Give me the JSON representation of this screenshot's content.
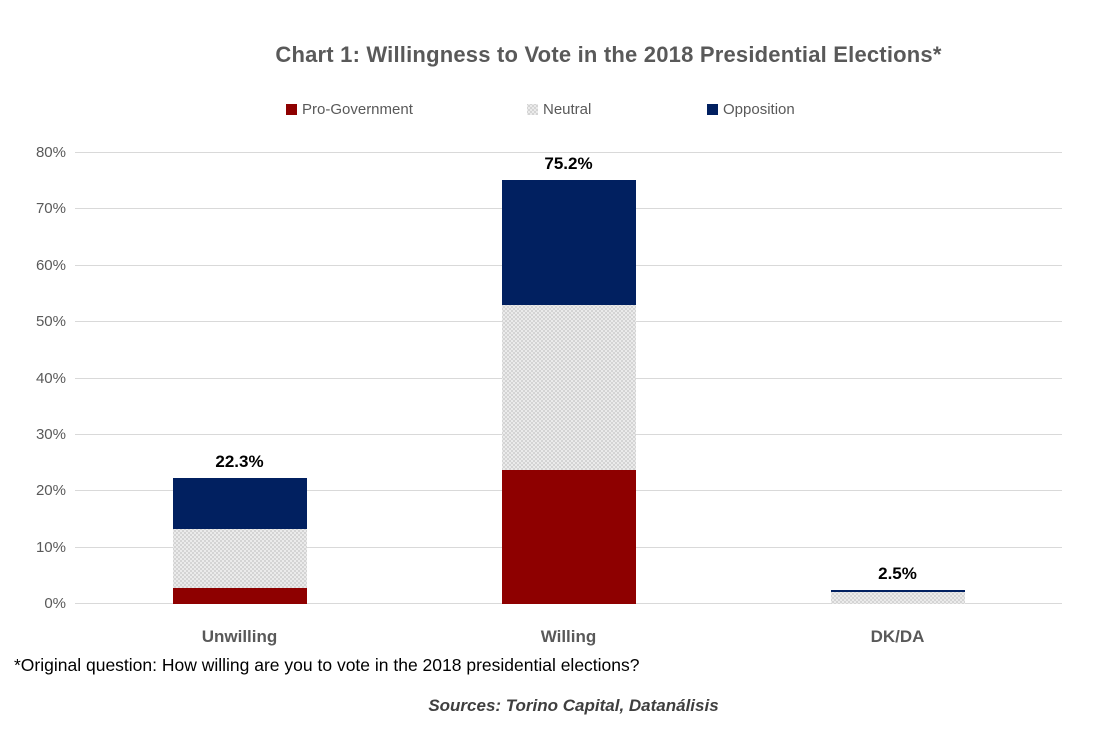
{
  "title": "Chart 1: Willingness to Vote in the 2018 Presidential Elections*",
  "footnote": "*Original question: How willing are you to vote in the 2018 presidential elections?",
  "source": "Sources: Torino Capital, Datanálisis",
  "colors": {
    "pro_government": "#8E0000",
    "neutral": "#EBEBEB",
    "neutral_dots": "#CDCDCD",
    "opposition": "#012060",
    "gridline": "#D9D9D9",
    "axis_text": "#595959",
    "title_text": "#595959",
    "data_label_text": "#000000"
  },
  "chart_data": {
    "type": "bar",
    "stacked": true,
    "title": "Chart 1: Willingness to Vote in the 2018 Presidential Elections*",
    "categories": [
      "Unwilling",
      "Willing",
      "DK/DA"
    ],
    "series": [
      {
        "name": "Pro-Government",
        "color_key": "pro_government",
        "values": [
          2.8,
          23.8,
          0
        ]
      },
      {
        "name": "Neutral",
        "color_key": "neutral",
        "values": [
          10.5,
          29.3,
          2.2
        ]
      },
      {
        "name": "Opposition",
        "color_key": "opposition",
        "values": [
          9.0,
          22.1,
          0.3
        ]
      }
    ],
    "totals": [
      22.3,
      75.2,
      2.5
    ],
    "total_labels": [
      "22.3%",
      "75.2%",
      "2.5%"
    ],
    "yticks": [
      "0%",
      "10%",
      "20%",
      "30%",
      "40%",
      "50%",
      "60%",
      "70%",
      "80%"
    ],
    "ylim": [
      0,
      80
    ],
    "grid": true,
    "legend_position": "top"
  }
}
